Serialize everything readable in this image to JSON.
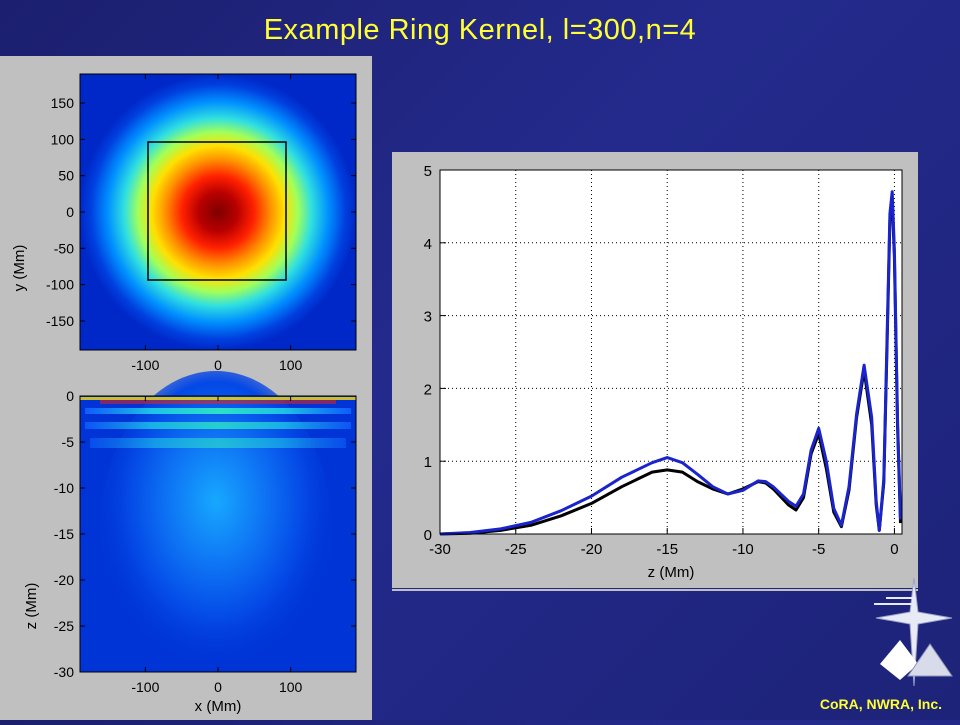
{
  "title": "Example Ring Kernel, l=300,n=4",
  "footer": "CoRA, NWRA, Inc.",
  "colors": {
    "background": "#1f247a",
    "title": "#ffff33",
    "panel": "#c0c0c0",
    "black_series": "#000000",
    "blue_series": "#1a24cc"
  },
  "icons": {
    "logo": "compass-star-logo",
    "arrow": "arrow-mountain-icon"
  },
  "chart_data": [
    {
      "type": "heatmap",
      "title": "",
      "xlabel": "",
      "ylabel": "y (Mm)",
      "xticks": [
        "-100",
        "0",
        "100"
      ],
      "yticks": [
        "150",
        "100",
        "50",
        "0",
        "-50",
        "-100",
        "-150"
      ],
      "xlim": [
        -190,
        190
      ],
      "ylim": [
        -190,
        190
      ],
      "colormap": "jet",
      "box": {
        "x": [
          -95,
          95
        ],
        "y": [
          -95,
          95
        ]
      }
    },
    {
      "type": "heatmap",
      "title": "",
      "xlabel": "x (Mm)",
      "ylabel": "z (Mm)",
      "xticks": [
        "-100",
        "0",
        "100"
      ],
      "yticks": [
        "0",
        "-5",
        "-10",
        "-15",
        "-20",
        "-25",
        "-30"
      ],
      "xlim": [
        -190,
        190
      ],
      "ylim": [
        -30,
        0
      ],
      "colormap": "jet"
    },
    {
      "type": "line",
      "title": "",
      "xlabel": "z (Mm)",
      "ylabel": "",
      "xlim": [
        -30,
        0.5
      ],
      "ylim": [
        0,
        5
      ],
      "xticks": [
        "-30",
        "-25",
        "-20",
        "-15",
        "-10",
        "-5",
        "0"
      ],
      "yticks": [
        "0",
        "1",
        "2",
        "3",
        "4",
        "5"
      ],
      "grid": true,
      "series": [
        {
          "color": "#000000",
          "x": [
            -30,
            -28,
            -26,
            -24,
            -22,
            -20,
            -18,
            -16,
            -15,
            -14,
            -13,
            -12,
            -11,
            -10,
            -9,
            -8.5,
            -8,
            -7,
            -6.5,
            -6,
            -5.5,
            -5,
            -4.5,
            -4,
            -3.5,
            -3,
            -2.5,
            -2,
            -1.5,
            -1.2,
            -1,
            -0.7,
            -0.5,
            -0.3,
            -0.15,
            0,
            0.2,
            0.4
          ],
          "y": [
            0,
            0.01,
            0.05,
            0.12,
            0.25,
            0.42,
            0.65,
            0.85,
            0.88,
            0.85,
            0.72,
            0.62,
            0.55,
            0.62,
            0.72,
            0.7,
            0.62,
            0.4,
            0.33,
            0.5,
            1.1,
            1.38,
            0.9,
            0.3,
            0.1,
            0.6,
            1.6,
            2.25,
            1.5,
            0.4,
            0.05,
            0.7,
            2.5,
            4.3,
            4.6,
            3.8,
            1.5,
            0.15
          ]
        },
        {
          "color": "#1a24cc",
          "x": [
            -30,
            -28,
            -26,
            -24,
            -22,
            -20,
            -18,
            -16,
            -15,
            -14,
            -13,
            -12,
            -11,
            -10,
            -9,
            -8.5,
            -8,
            -7,
            -6.5,
            -6,
            -5.5,
            -5,
            -4.5,
            -4,
            -3.5,
            -3,
            -2.5,
            -2,
            -1.5,
            -1.2,
            -1,
            -0.7,
            -0.5,
            -0.3,
            -0.15,
            0,
            0.2,
            0.4
          ],
          "y": [
            0,
            0.02,
            0.07,
            0.16,
            0.32,
            0.52,
            0.78,
            0.98,
            1.05,
            0.98,
            0.82,
            0.65,
            0.55,
            0.6,
            0.73,
            0.72,
            0.65,
            0.45,
            0.38,
            0.55,
            1.15,
            1.45,
            1.0,
            0.35,
            0.12,
            0.65,
            1.65,
            2.32,
            1.6,
            0.45,
            0.05,
            0.75,
            2.6,
            4.4,
            4.7,
            3.9,
            1.6,
            0.2
          ]
        }
      ]
    }
  ]
}
